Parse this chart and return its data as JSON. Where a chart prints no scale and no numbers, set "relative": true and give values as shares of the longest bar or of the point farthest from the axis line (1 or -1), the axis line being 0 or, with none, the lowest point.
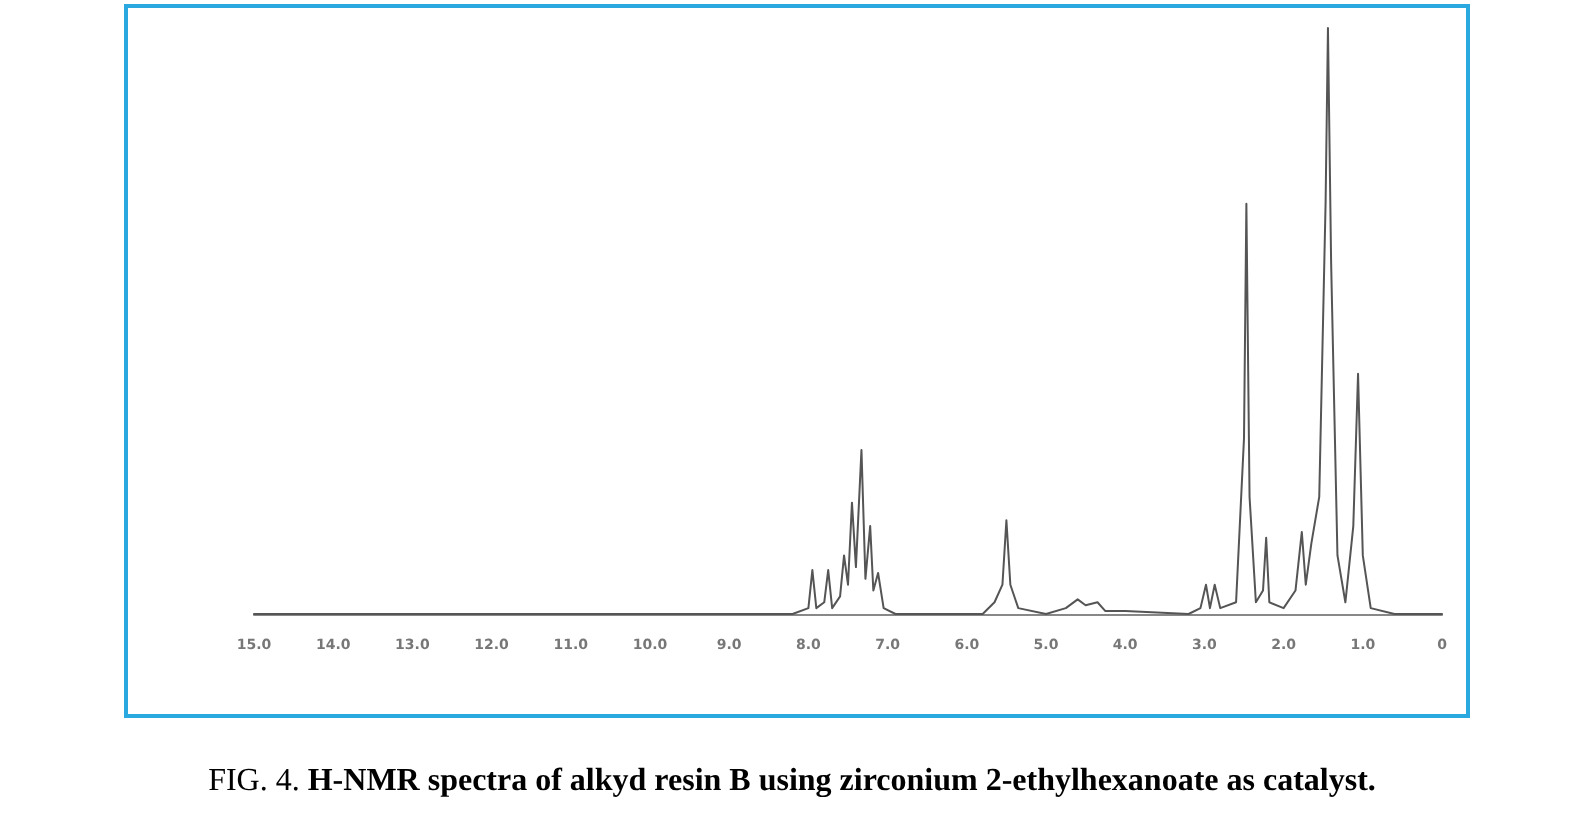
{
  "chart_data": {
    "type": "line",
    "relative": true,
    "grid": false,
    "marker": "none",
    "line_style": "solid",
    "xlim": [
      15,
      0
    ],
    "xticks": [
      {
        "value": 15,
        "label": "15.0"
      },
      {
        "value": 14,
        "label": "14.0"
      },
      {
        "value": 13,
        "label": "13.0"
      },
      {
        "value": 12,
        "label": "12.0"
      },
      {
        "value": 11,
        "label": "11.0"
      },
      {
        "value": 10,
        "label": "10.0"
      },
      {
        "value": 9,
        "label": "9.0"
      },
      {
        "value": 8,
        "label": "8.0"
      },
      {
        "value": 7,
        "label": "7.0"
      },
      {
        "value": 6,
        "label": "6.0"
      },
      {
        "value": 5,
        "label": "5.0"
      },
      {
        "value": 4,
        "label": "4.0"
      },
      {
        "value": 3,
        "label": "3.0"
      },
      {
        "value": 2,
        "label": "2.0"
      },
      {
        "value": 1,
        "label": "1.0"
      },
      0
    ],
    "series": [
      {
        "color": "#555555",
        "x": [
          15,
          8.2,
          8.0,
          7.95,
          7.9,
          7.8,
          7.75,
          7.7,
          7.6,
          7.55,
          7.5,
          7.45,
          7.4,
          7.33,
          7.28,
          7.22,
          7.18,
          7.12,
          7.05,
          6.9,
          5.8,
          5.65,
          5.55,
          5.5,
          5.45,
          5.35,
          5.0,
          4.75,
          4.6,
          4.5,
          4.35,
          4.25,
          4.0,
          3.2,
          3.05,
          2.98,
          2.93,
          2.87,
          2.8,
          2.6,
          2.5,
          2.47,
          2.43,
          2.35,
          2.26,
          2.22,
          2.18,
          2.0,
          1.85,
          1.77,
          1.72,
          1.65,
          1.55,
          1.47,
          1.44,
          1.4,
          1.32,
          1.22,
          1.12,
          1.06,
          1.0,
          0.9,
          0.6,
          0
        ],
        "values": [
          0,
          0,
          0.01,
          0.075,
          0.01,
          0.02,
          0.075,
          0.01,
          0.03,
          0.1,
          0.05,
          0.19,
          0.08,
          0.28,
          0.06,
          0.15,
          0.04,
          0.07,
          0.01,
          0,
          0,
          0.02,
          0.05,
          0.16,
          0.05,
          0.01,
          0,
          0.01,
          0.025,
          0.015,
          0.02,
          0.005,
          0.005,
          0,
          0.01,
          0.05,
          0.01,
          0.05,
          0.01,
          0.02,
          0.3,
          0.7,
          0.2,
          0.02,
          0.04,
          0.13,
          0.02,
          0.01,
          0.04,
          0.14,
          0.05,
          0.12,
          0.2,
          0.7,
          1.0,
          0.6,
          0.1,
          0.02,
          0.15,
          0.41,
          0.1,
          0.01,
          0,
          0
        ]
      }
    ],
    "annotations": [
      "FIG. 4.",
      "H-NMR spectra of alkyd resin B using zirconium 2-ethylhexanoate as catalyst."
    ]
  }
}
